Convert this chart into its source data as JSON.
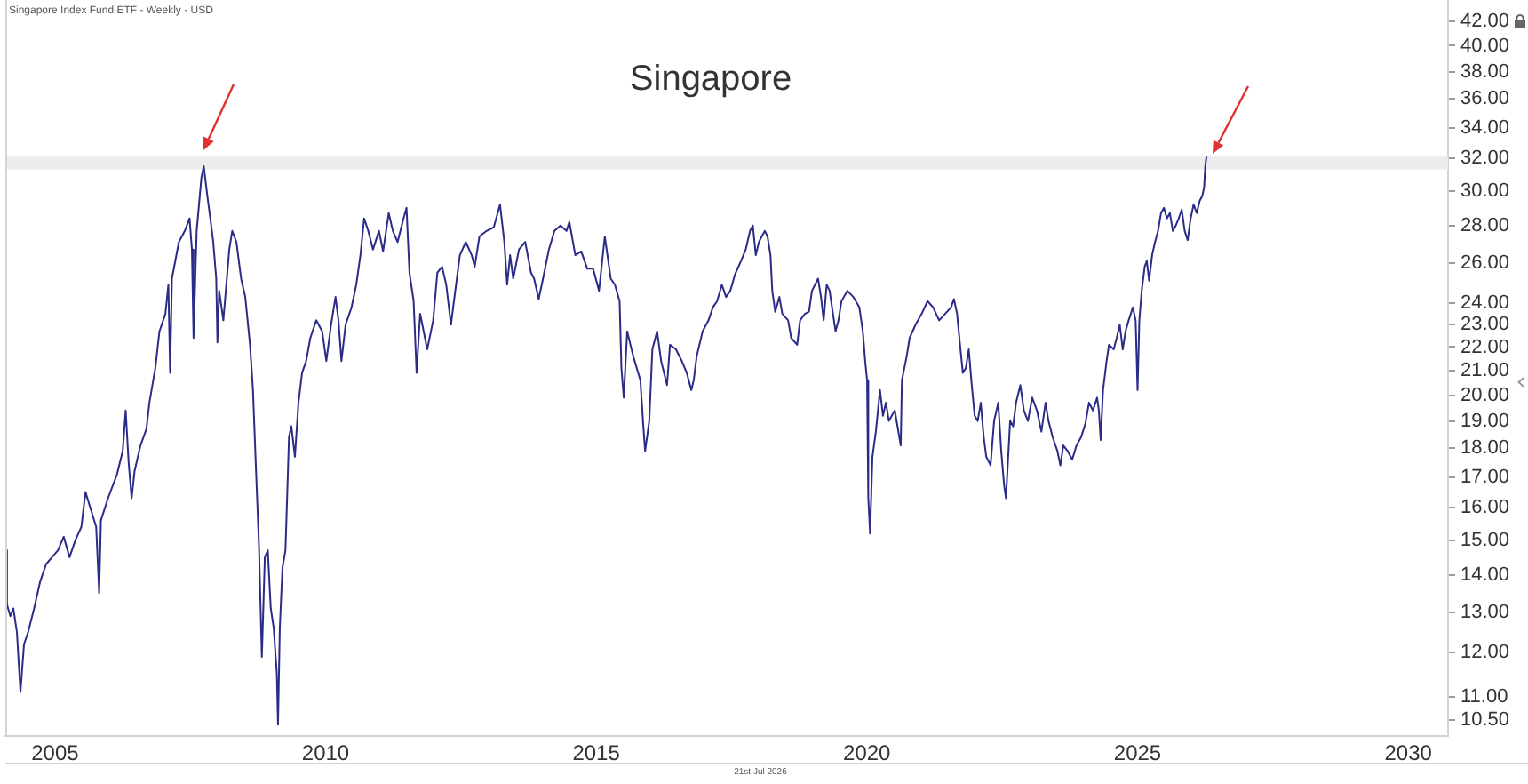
{
  "chart_data": {
    "type": "line",
    "title": "Singapore",
    "annotations": [
      "Singapore Index Fund ETF - Weekly - USD",
      "21st Jul 2026"
    ],
    "color": "#2b2b88",
    "log": true,
    "xlim": [
      "2004-02-01",
      "2030-09-27"
    ],
    "xticks": [
      "2005",
      "2010",
      "2015",
      "2020",
      "2025",
      "2030"
    ],
    "ylim": [
      10.17,
      43.8
    ],
    "yticks": [
      {
        "value": 10.5,
        "label": "10.50"
      },
      {
        "value": 11,
        "label": "11.00"
      },
      {
        "value": 12,
        "label": "12.00"
      },
      {
        "value": 13,
        "label": "13.00"
      },
      {
        "value": 14,
        "label": "14.00"
      },
      {
        "value": 15,
        "label": "15.00"
      },
      {
        "value": 16,
        "label": "16.00"
      },
      {
        "value": 17,
        "label": "17.00"
      },
      {
        "value": 18,
        "label": "18.00"
      },
      {
        "value": 19,
        "label": "19.00"
      },
      {
        "value": 20,
        "label": "20.00"
      },
      {
        "value": 21,
        "label": "21.00"
      },
      {
        "value": 22,
        "label": "22.00"
      },
      {
        "value": 23,
        "label": "23.00"
      },
      {
        "value": 24,
        "label": "24.00"
      },
      {
        "value": 26,
        "label": "26.00"
      },
      {
        "value": 28,
        "label": "28.00"
      },
      {
        "value": 30,
        "label": "30.00"
      },
      {
        "value": 32,
        "label": "32.00"
      },
      {
        "value": 34,
        "label": "34.00"
      },
      {
        "value": 36,
        "label": "36.00"
      },
      {
        "value": 38,
        "label": "38.00"
      },
      {
        "value": 40,
        "label": "40.00"
      },
      {
        "value": 42,
        "label": "42.00"
      }
    ],
    "bands": [
      {
        "axis": "y",
        "from": 31.3,
        "to": 32.1,
        "color": "#ececec"
      }
    ],
    "x": [
      "2004-02-03",
      "2004-02-12",
      "2004-03-06",
      "2004-03-26",
      "2004-04-19",
      "2004-05-13",
      "2004-06-06",
      "2004-07-04",
      "2004-08-13",
      "2004-09-22",
      "2004-11-02",
      "2004-12-12",
      "2005-01-21",
      "2005-03-01",
      "2005-04-09",
      "2005-05-19",
      "2005-06-28",
      "2005-07-26",
      "2005-08-27",
      "2005-10-06",
      "2005-10-26",
      "2005-11-07",
      "2005-12-25",
      "2006-02-24",
      "2006-04-03",
      "2006-04-23",
      "2006-05-13",
      "2006-06-02",
      "2006-06-22",
      "2006-08-01",
      "2006-09-10",
      "2006-09-30",
      "2006-11-09",
      "2006-12-07",
      "2007-01-16",
      "2007-02-05",
      "2007-02-17",
      "2007-03-01",
      "2007-04-17",
      "2007-05-27",
      "2007-06-28",
      "2007-07-14",
      "2007-07-25",
      "2007-08-15",
      "2007-09-16",
      "2007-10-02",
      "2007-10-26",
      "2007-11-15",
      "2007-12-05",
      "2007-12-25",
      "2008-01-02",
      "2008-01-14",
      "2008-02-11",
      "2008-03-22",
      "2008-04-11",
      "2008-05-09",
      "2008-06-10",
      "2008-07-08",
      "2008-08-09",
      "2008-08-29",
      "2008-09-18",
      "2008-10-08",
      "2008-10-28",
      "2008-11-17",
      "2008-12-07",
      "2008-12-27",
      "2009-01-16",
      "2009-02-06",
      "2009-02-14",
      "2009-02-26",
      "2009-03-16",
      "2009-04-05",
      "2009-04-13",
      "2009-04-29",
      "2009-05-15",
      "2009-06-08",
      "2009-07-02",
      "2009-07-26",
      "2009-08-23",
      "2009-09-20",
      "2009-10-30",
      "2009-12-09",
      "2010-01-06",
      "2010-02-07",
      "2010-03-09",
      "2010-03-29",
      "2010-04-18",
      "2010-05-16",
      "2010-06-25",
      "2010-07-27",
      "2010-08-24",
      "2010-09-18",
      "2010-10-16",
      "2010-11-17",
      "2010-12-27",
      "2011-01-24",
      "2011-03-03",
      "2011-03-31",
      "2011-05-02",
      "2011-06-11",
      "2011-07-01",
      "2011-07-21",
      "2011-08-18",
      "2011-09-07",
      "2011-10-01",
      "2011-11-18",
      "2011-12-28",
      "2012-01-25",
      "2012-02-26",
      "2012-03-25",
      "2012-04-26",
      "2012-05-16",
      "2012-06-25",
      "2012-08-04",
      "2012-09-13",
      "2012-10-03",
      "2012-11-04",
      "2012-12-22",
      "2013-02-09",
      "2013-03-23",
      "2013-04-21",
      "2013-05-10",
      "2013-05-30",
      "2013-06-20",
      "2013-07-29",
      "2013-09-09",
      "2013-10-18",
      "2013-11-08",
      "2013-12-09",
      "2014-01-07",
      "2014-02-16",
      "2014-03-25",
      "2014-05-05",
      "2014-06-14",
      "2014-07-04",
      "2014-08-13",
      "2014-09-22",
      "2014-11-02",
      "2014-12-11",
      "2015-01-20",
      "2015-02-28",
      "2015-04-09",
      "2015-05-07",
      "2015-06-08",
      "2015-06-20",
      "2015-07-06",
      "2015-07-29",
      "2015-09-08",
      "2015-10-26",
      "2015-11-15",
      "2015-11-27",
      "2015-12-25",
      "2016-01-15",
      "2016-02-16",
      "2016-03-14",
      "2016-04-23",
      "2016-05-13",
      "2016-06-22",
      "2016-08-01",
      "2016-09-03",
      "2016-10-04",
      "2016-10-20",
      "2016-11-09",
      "2016-12-19",
      "2017-01-28",
      "2017-02-26",
      "2017-03-27",
      "2017-04-28",
      "2017-05-26",
      "2017-06-24",
      "2017-07-25",
      "2017-09-04",
      "2017-10-06",
      "2017-11-04",
      "2017-11-23",
      "2017-12-13",
      "2018-01-03",
      "2018-01-22",
      "2018-02-12",
      "2018-03-02",
      "2018-03-22",
      "2018-04-03",
      "2018-04-23",
      "2018-05-21",
      "2018-06-10",
      "2018-07-19",
      "2018-08-09",
      "2018-09-18",
      "2018-10-08",
      "2018-11-09",
      "2018-12-07",
      "2018-12-27",
      "2019-02-06",
      "2019-02-26",
      "2019-03-16",
      "2019-04-05",
      "2019-04-25",
      "2019-06-04",
      "2019-06-24",
      "2019-07-14",
      "2019-08-23",
      "2019-10-02",
      "2019-11-12",
      "2019-12-05",
      "2019-12-21",
      "2020-01-03",
      "2020-01-11",
      "2020-01-23",
      "2020-02-08",
      "2020-03-02",
      "2020-03-30",
      "2020-04-19",
      "2020-05-09",
      "2020-05-29",
      "2020-07-08",
      "2020-08-17",
      "2020-08-25",
      "2020-09-26",
      "2020-10-16",
      "2020-11-25",
      "2021-01-05",
      "2021-02-14",
      "2021-03-24",
      "2021-05-03",
      "2021-06-12",
      "2021-07-22",
      "2021-08-11",
      "2021-09-01",
      "2021-09-21",
      "2021-10-10",
      "2021-10-30",
      "2021-11-19",
      "2021-12-09",
      "2021-12-29",
      "2022-01-18",
      "2022-02-08",
      "2022-02-28",
      "2022-03-17",
      "2022-04-15",
      "2022-05-09",
      "2022-06-06",
      "2022-06-26",
      "2022-07-16",
      "2022-07-28",
      "2022-08-25",
      "2022-09-14",
      "2022-10-04",
      "2022-11-02",
      "2022-11-26",
      "2022-12-23",
      "2023-01-21",
      "2023-02-22",
      "2023-03-24",
      "2023-04-21",
      "2023-05-11",
      "2023-06-08",
      "2023-07-10",
      "2023-07-30",
      "2023-08-19",
      "2023-09-17",
      "2023-10-18",
      "2023-11-16",
      "2023-12-17",
      "2024-01-15",
      "2024-02-08",
      "2024-03-06",
      "2024-04-03",
      "2024-04-15",
      "2024-04-27",
      "2024-05-13",
      "2024-06-06",
      "2024-06-22",
      "2024-07-24",
      "2024-08-13",
      "2024-09-03",
      "2024-09-23",
      "2024-10-12",
      "2024-11-02",
      "2024-11-30",
      "2024-12-19",
      "2025-01-01",
      "2025-01-13",
      "2025-01-29",
      "2025-02-18",
      "2025-03-04",
      "2025-03-20",
      "2025-04-09",
      "2025-04-29",
      "2025-05-19",
      "2025-06-08",
      "2025-06-28",
      "2025-07-18",
      "2025-08-07",
      "2025-08-27",
      "2025-09-16",
      "2025-10-06",
      "2025-10-26",
      "2025-11-15",
      "2025-12-05",
      "2025-12-25",
      "2026-01-14",
      "2026-02-04",
      "2026-02-24",
      "2026-03-14",
      "2026-03-26",
      "2026-04-03",
      "2026-04-11"
    ],
    "values": [
      14.7,
      13.2,
      12.9,
      13.1,
      12.5,
      11.1,
      12.2,
      12.5,
      13.1,
      13.8,
      14.3,
      14.5,
      14.7,
      15.1,
      14.5,
      15.0,
      15.4,
      16.5,
      16.0,
      15.4,
      13.5,
      15.6,
      16.3,
      17.1,
      17.9,
      19.4,
      17.5,
      16.3,
      17.2,
      18.1,
      18.7,
      19.7,
      21.1,
      22.7,
      23.5,
      24.9,
      20.9,
      25.2,
      27.1,
      27.7,
      28.4,
      26.7,
      22.4,
      27.7,
      30.8,
      31.5,
      29.7,
      28.4,
      27.1,
      25.2,
      22.2,
      24.6,
      23.2,
      26.7,
      27.7,
      27.1,
      25.2,
      24.3,
      22.1,
      20.2,
      17.3,
      14.9,
      11.9,
      14.5,
      14.7,
      13.1,
      12.6,
      11.5,
      10.4,
      12.6,
      14.2,
      14.7,
      15.8,
      18.4,
      18.8,
      17.7,
      19.7,
      20.9,
      21.4,
      22.4,
      23.2,
      22.7,
      21.4,
      23.0,
      24.3,
      23.2,
      21.4,
      23.0,
      23.8,
      24.9,
      26.4,
      28.4,
      27.7,
      26.7,
      27.7,
      26.6,
      28.7,
      27.7,
      27.1,
      28.4,
      29.0,
      25.5,
      24.1,
      20.9,
      23.5,
      21.9,
      23.2,
      25.5,
      25.8,
      24.9,
      23.0,
      24.1,
      26.4,
      27.1,
      26.4,
      25.8,
      27.4,
      27.7,
      27.9,
      29.2,
      27.1,
      24.9,
      26.4,
      25.2,
      26.7,
      27.1,
      25.5,
      25.2,
      24.2,
      25.2,
      26.7,
      27.7,
      28.0,
      27.7,
      28.2,
      26.4,
      26.6,
      25.7,
      25.7,
      24.6,
      27.4,
      25.2,
      24.9,
      24.1,
      21.1,
      19.9,
      22.7,
      21.6,
      20.6,
      18.8,
      17.9,
      19.0,
      21.9,
      22.7,
      21.4,
      20.4,
      22.1,
      21.9,
      21.4,
      20.9,
      20.2,
      20.6,
      21.6,
      22.7,
      23.2,
      23.8,
      24.1,
      24.9,
      24.3,
      24.6,
      25.4,
      26.1,
      26.7,
      27.7,
      28.0,
      26.4,
      27.1,
      27.4,
      27.7,
      27.4,
      26.4,
      24.6,
      23.6,
      24.3,
      23.5,
      23.2,
      22.4,
      22.1,
      23.2,
      23.5,
      23.6,
      24.6,
      25.2,
      24.3,
      23.2,
      24.9,
      24.6,
      22.7,
      23.2,
      24.1,
      24.6,
      24.3,
      23.8,
      22.7,
      21.4,
      20.6,
      16.3,
      15.2,
      17.7,
      18.6,
      20.2,
      19.2,
      19.7,
      19.0,
      19.4,
      18.1,
      20.6,
      21.6,
      22.4,
      23.0,
      23.5,
      24.1,
      23.8,
      23.2,
      23.5,
      23.8,
      24.2,
      23.5,
      22.1,
      20.9,
      21.1,
      21.9,
      20.4,
      19.2,
      19.0,
      19.7,
      18.4,
      17.7,
      17.4,
      19.0,
      19.7,
      17.9,
      16.7,
      16.3,
      19.0,
      18.8,
      19.7,
      20.4,
      19.4,
      19.0,
      19.9,
      19.4,
      18.6,
      19.7,
      19.0,
      18.4,
      17.9,
      17.4,
      18.1,
      17.9,
      17.6,
      18.1,
      18.4,
      18.9,
      19.7,
      19.4,
      19.9,
      19.4,
      18.3,
      20.2,
      21.4,
      22.1,
      21.9,
      22.4,
      23.0,
      21.9,
      22.7,
      23.2,
      23.8,
      23.2,
      20.2,
      23.2,
      24.6,
      25.8,
      26.1,
      25.1,
      26.4,
      27.1,
      27.7,
      28.7,
      29.0,
      28.4,
      28.7,
      27.7,
      28.0,
      28.4,
      28.9,
      27.7,
      27.2,
      28.4,
      29.2,
      28.7,
      29.4,
      29.7,
      30.2,
      31.5,
      32.1
    ]
  }
}
